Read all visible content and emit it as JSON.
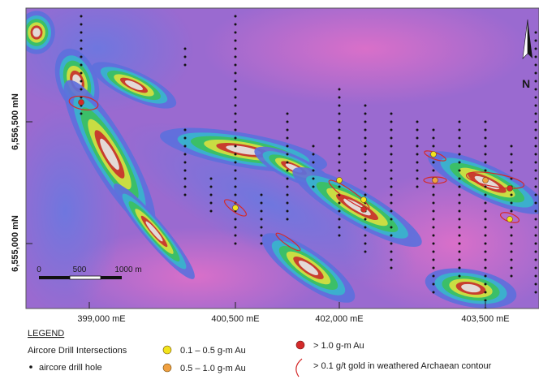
{
  "map": {
    "northing_labels": [
      "6,556,500 mN",
      "6,555,000 mN"
    ],
    "easting_labels": [
      "399,000 mE",
      "400,500 mE",
      "402,000 mE",
      "403,500 mE"
    ],
    "scale_bar": [
      "0",
      "500",
      "1000 m"
    ],
    "north_label": "N"
  },
  "legend": {
    "title": "LEGEND",
    "group_title": "Aircore Drill Intersections",
    "drill_hole": "aircore drill hole",
    "low": "0.1 – 0.5 g-m Au",
    "mid": "0.5 – 1.0 g-m Au",
    "high": "> 1.0 g-m Au",
    "contour": "> 0.1 g/t gold in weathered Archaean contour"
  }
}
